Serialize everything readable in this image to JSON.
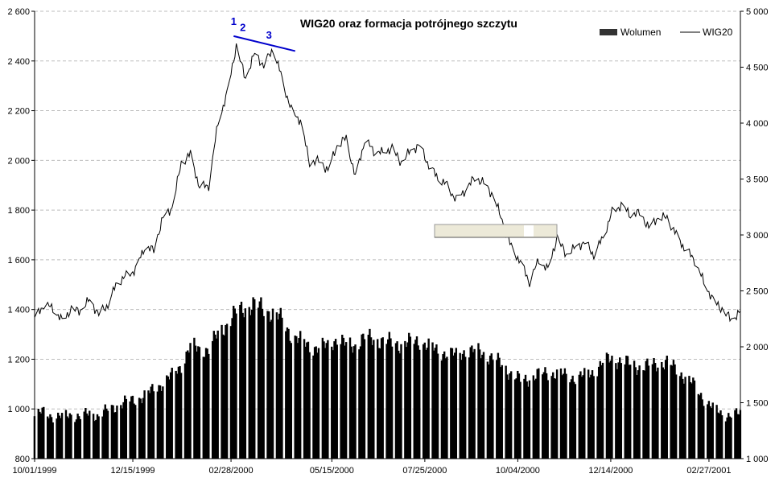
{
  "chart_data": {
    "type": "bar+line",
    "title": "WIG20 oraz formacja potrójnego szczytu",
    "legend": {
      "placement": "top-right",
      "entries": [
        "Wolumen",
        "WIG20"
      ]
    },
    "grid": true,
    "x_dates": [
      "10/01/1999",
      "12/15/1999",
      "02/28/2000",
      "05/15/2000",
      "07/25/2000",
      "10/04/2000",
      "12/14/2000",
      "02/27/2001"
    ],
    "x_range": [
      "1999-10-01",
      "2001-03-23"
    ],
    "y_left": {
      "range": [
        800,
        2600
      ],
      "ticks": [
        800,
        1000,
        1200,
        1400,
        1600,
        1800,
        2000,
        2200,
        2400,
        2600
      ],
      "tick_labels": [
        "800",
        "1 000",
        "1 200",
        "1 400",
        "1 600",
        "1 800",
        "2 000",
        "2 200",
        "2 400",
        "2 600"
      ]
    },
    "y_right": {
      "range": [
        1000,
        5000
      ],
      "ticks": [
        1000,
        1500,
        2000,
        2500,
        3000,
        3500,
        4000,
        4500,
        5000
      ],
      "tick_labels": [
        "1 000",
        "1 500",
        "2 000",
        "2 500",
        "3 000",
        "3 500",
        "4 000",
        "4 500",
        "5 000"
      ]
    },
    "series": [
      {
        "name": "WIG20",
        "axis": "left",
        "style": "line",
        "color": "#000000",
        "points": [
          [
            "1999-10-01",
            1360
          ],
          [
            "1999-10-08",
            1420
          ],
          [
            "1999-10-15",
            1405
          ],
          [
            "1999-10-22",
            1355
          ],
          [
            "1999-10-29",
            1400
          ],
          [
            "1999-11-05",
            1395
          ],
          [
            "1999-11-12",
            1440
          ],
          [
            "1999-11-19",
            1380
          ],
          [
            "1999-11-26",
            1420
          ],
          [
            "1999-12-03",
            1510
          ],
          [
            "1999-12-10",
            1535
          ],
          [
            "1999-12-17",
            1560
          ],
          [
            "1999-12-24",
            1650
          ],
          [
            "1999-12-31",
            1640
          ],
          [
            "2000-01-07",
            1770
          ],
          [
            "2000-01-14",
            1810
          ],
          [
            "2000-01-21",
            1990
          ],
          [
            "2000-01-28",
            2025
          ],
          [
            "2000-02-04",
            1890
          ],
          [
            "2000-02-11",
            1900
          ],
          [
            "2000-02-18",
            2150
          ],
          [
            "2000-02-25",
            2270
          ],
          [
            "2000-03-03",
            2460
          ],
          [
            "2000-03-10",
            2330
          ],
          [
            "2000-03-17",
            2430
          ],
          [
            "2000-03-24",
            2380
          ],
          [
            "2000-03-31",
            2450
          ],
          [
            "2000-04-07",
            2330
          ],
          [
            "2000-04-14",
            2200
          ],
          [
            "2000-04-21",
            2160
          ],
          [
            "2000-04-28",
            1990
          ],
          [
            "2000-05-05",
            2000
          ],
          [
            "2000-05-12",
            1960
          ],
          [
            "2000-05-19",
            2060
          ],
          [
            "2000-05-26",
            2090
          ],
          [
            "2000-06-02",
            1930
          ],
          [
            "2000-06-09",
            2080
          ],
          [
            "2000-06-16",
            2040
          ],
          [
            "2000-06-23",
            2030
          ],
          [
            "2000-06-30",
            2050
          ],
          [
            "2000-07-07",
            1990
          ],
          [
            "2000-07-14",
            2040
          ],
          [
            "2000-07-21",
            2060
          ],
          [
            "2000-07-28",
            1980
          ],
          [
            "2000-08-04",
            1930
          ],
          [
            "2000-08-11",
            1900
          ],
          [
            "2000-08-18",
            1840
          ],
          [
            "2000-08-25",
            1880
          ],
          [
            "2000-09-01",
            1930
          ],
          [
            "2000-09-08",
            1910
          ],
          [
            "2000-09-15",
            1860
          ],
          [
            "2000-09-22",
            1760
          ],
          [
            "2000-09-29",
            1650
          ],
          [
            "2000-10-06",
            1590
          ],
          [
            "2000-10-13",
            1510
          ],
          [
            "2000-10-20",
            1600
          ],
          [
            "2000-10-27",
            1560
          ],
          [
            "2000-11-03",
            1690
          ],
          [
            "2000-11-10",
            1620
          ],
          [
            "2000-11-17",
            1650
          ],
          [
            "2000-11-24",
            1670
          ],
          [
            "2000-12-01",
            1620
          ],
          [
            "2000-12-08",
            1690
          ],
          [
            "2000-12-15",
            1790
          ],
          [
            "2000-12-22",
            1820
          ],
          [
            "2000-12-29",
            1780
          ],
          [
            "2001-01-05",
            1790
          ],
          [
            "2001-01-12",
            1730
          ],
          [
            "2001-01-19",
            1770
          ],
          [
            "2001-01-26",
            1770
          ],
          [
            "2001-02-02",
            1700
          ],
          [
            "2001-02-09",
            1640
          ],
          [
            "2001-02-16",
            1600
          ],
          [
            "2001-02-23",
            1510
          ],
          [
            "2001-03-02",
            1440
          ],
          [
            "2001-03-09",
            1400
          ],
          [
            "2001-03-16",
            1360
          ],
          [
            "2001-03-23",
            1390
          ]
        ]
      },
      {
        "name": "Wolumen",
        "axis": "right",
        "style": "bar",
        "color": "#000000",
        "points": [
          [
            "1999-10-01",
            1380
          ],
          [
            "1999-10-08",
            1420
          ],
          [
            "1999-10-15",
            1380
          ],
          [
            "1999-10-22",
            1370
          ],
          [
            "1999-10-29",
            1400
          ],
          [
            "1999-11-05",
            1370
          ],
          [
            "1999-11-12",
            1410
          ],
          [
            "1999-11-19",
            1380
          ],
          [
            "1999-11-26",
            1440
          ],
          [
            "1999-12-03",
            1470
          ],
          [
            "1999-12-10",
            1510
          ],
          [
            "1999-12-17",
            1530
          ],
          [
            "1999-12-24",
            1560
          ],
          [
            "1999-12-31",
            1620
          ],
          [
            "2000-01-07",
            1680
          ],
          [
            "2000-01-14",
            1740
          ],
          [
            "2000-01-21",
            1840
          ],
          [
            "2000-01-28",
            2000
          ],
          [
            "2000-02-04",
            1980
          ],
          [
            "2000-02-11",
            1980
          ],
          [
            "2000-02-18",
            2110
          ],
          [
            "2000-02-25",
            2210
          ],
          [
            "2000-03-03",
            2310
          ],
          [
            "2000-03-10",
            2350
          ],
          [
            "2000-03-17",
            2380
          ],
          [
            "2000-03-24",
            2340
          ],
          [
            "2000-03-31",
            2300
          ],
          [
            "2000-04-07",
            2240
          ],
          [
            "2000-04-14",
            2110
          ],
          [
            "2000-04-21",
            2050
          ],
          [
            "2000-04-28",
            2010
          ],
          [
            "2000-05-05",
            1990
          ],
          [
            "2000-05-12",
            2010
          ],
          [
            "2000-05-19",
            2080
          ],
          [
            "2000-05-26",
            2010
          ],
          [
            "2000-06-02",
            2020
          ],
          [
            "2000-06-09",
            2080
          ],
          [
            "2000-06-16",
            2070
          ],
          [
            "2000-06-23",
            2050
          ],
          [
            "2000-06-30",
            2040
          ],
          [
            "2000-07-07",
            2020
          ],
          [
            "2000-07-14",
            2040
          ],
          [
            "2000-07-21",
            2060
          ],
          [
            "2000-07-28",
            2000
          ],
          [
            "2000-08-04",
            1960
          ],
          [
            "2000-08-11",
            1950
          ],
          [
            "2000-08-18",
            1920
          ],
          [
            "2000-08-25",
            1970
          ],
          [
            "2000-09-01",
            1960
          ],
          [
            "2000-09-08",
            1940
          ],
          [
            "2000-09-15",
            1900
          ],
          [
            "2000-09-22",
            1840
          ],
          [
            "2000-09-29",
            1760
          ],
          [
            "2000-10-06",
            1700
          ],
          [
            "2000-10-13",
            1720
          ],
          [
            "2000-10-20",
            1750
          ],
          [
            "2000-10-27",
            1770
          ],
          [
            "2000-11-03",
            1760
          ],
          [
            "2000-11-10",
            1740
          ],
          [
            "2000-11-17",
            1730
          ],
          [
            "2000-11-24",
            1740
          ],
          [
            "2000-12-01",
            1780
          ],
          [
            "2000-12-08",
            1860
          ],
          [
            "2000-12-15",
            1890
          ],
          [
            "2000-12-22",
            1880
          ],
          [
            "2000-12-29",
            1840
          ],
          [
            "2001-01-05",
            1820
          ],
          [
            "2001-01-12",
            1830
          ],
          [
            "2001-01-19",
            1850
          ],
          [
            "2001-01-26",
            1860
          ],
          [
            "2001-02-02",
            1800
          ],
          [
            "2001-02-09",
            1730
          ],
          [
            "2001-02-16",
            1650
          ],
          [
            "2001-02-23",
            1540
          ],
          [
            "2001-03-02",
            1450
          ],
          [
            "2001-03-09",
            1400
          ],
          [
            "2001-03-16",
            1390
          ],
          [
            "2001-03-23",
            1400
          ]
        ]
      }
    ],
    "annotations": [
      {
        "text": "1",
        "color": "#0000cc"
      },
      {
        "text": "2",
        "color": "#0000cc"
      },
      {
        "text": "3",
        "color": "#0000cc"
      }
    ],
    "trendline": {
      "color": "#0000cc",
      "from": [
        "2000-03-01",
        2500
      ],
      "to": [
        "2000-04-17",
        2440
      ]
    }
  }
}
